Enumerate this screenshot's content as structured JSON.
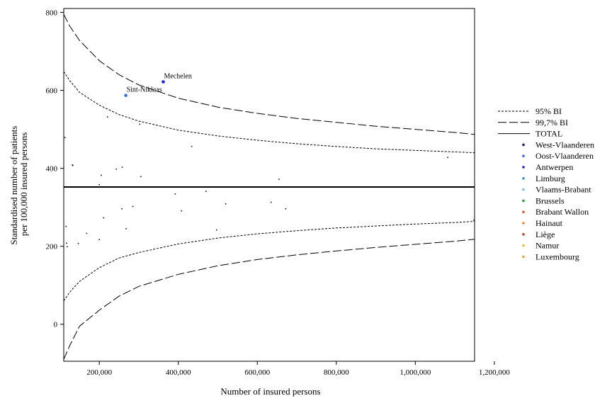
{
  "chart_data": {
    "type": "scatter",
    "xlabel": "Number of insured persons",
    "ylabel": [
      "Standardised number of patients",
      "per 100,000 insured persons"
    ],
    "xlim": [
      110000,
      1150000
    ],
    "ylim": [
      -95,
      810
    ],
    "x_ticks": [
      200000,
      400000,
      600000,
      800000,
      1000000,
      1200000
    ],
    "x_tick_labels": [
      "200,000",
      "400,000",
      "600,000",
      "800,000",
      "1,000,000",
      "1,200,000"
    ],
    "y_ticks": [
      0,
      200,
      400,
      600,
      800
    ],
    "y_tick_labels": [
      "0",
      "200",
      "400",
      "600",
      "800"
    ],
    "total": 352,
    "legend_placement": "right",
    "legend": [
      {
        "label": "95% BI",
        "kind": "line",
        "style": "dotted"
      },
      {
        "label": "99,7% BI",
        "kind": "line",
        "style": "dashed"
      },
      {
        "label": "TOTAL",
        "kind": "line",
        "style": "solid"
      },
      {
        "label": "West-Vlaanderen",
        "kind": "marker",
        "color": "#1a1a80"
      },
      {
        "label": "Oost-Vlaanderen",
        "kind": "marker",
        "color": "#3c6fd8"
      },
      {
        "label": "Antwerpen",
        "kind": "marker",
        "color": "#1f1fd6"
      },
      {
        "label": "Limburg",
        "kind": "marker",
        "color": "#2f8fe0"
      },
      {
        "label": "Vlaams-Brabant",
        "kind": "marker",
        "color": "#7cc0ee"
      },
      {
        "label": "Brussels",
        "kind": "marker",
        "color": "#2ca02c"
      },
      {
        "label": "Brabant Wallon",
        "kind": "marker",
        "color": "#d9622b"
      },
      {
        "label": "Hainaut",
        "kind": "marker",
        "color": "#f08a2c"
      },
      {
        "label": "Liège",
        "kind": "marker",
        "color": "#b5472a"
      },
      {
        "label": "Namur",
        "kind": "marker",
        "color": "#f2c230"
      },
      {
        "label": "Luxembourg",
        "kind": "marker",
        "color": "#f0a030"
      }
    ],
    "bands": [
      {
        "label": "99,7% BI",
        "style": "dashed",
        "upper": [
          [
            110000,
            795
          ],
          [
            125000,
            765
          ],
          [
            150000,
            728
          ],
          [
            200000,
            676
          ],
          [
            250000,
            640
          ],
          [
            300000,
            614
          ],
          [
            400000,
            580
          ],
          [
            500000,
            557
          ],
          [
            600000,
            541
          ],
          [
            700000,
            528
          ],
          [
            800000,
            518
          ],
          [
            900000,
            508
          ],
          [
            1000000,
            500
          ],
          [
            1100000,
            492
          ],
          [
            1150000,
            487
          ]
        ],
        "lower": [
          [
            110000,
            -90
          ],
          [
            125000,
            -55
          ],
          [
            150000,
            -5
          ],
          [
            200000,
            36
          ],
          [
            250000,
            72
          ],
          [
            300000,
            97
          ],
          [
            400000,
            128
          ],
          [
            500000,
            150
          ],
          [
            600000,
            166
          ],
          [
            700000,
            178
          ],
          [
            800000,
            188
          ],
          [
            900000,
            197
          ],
          [
            1000000,
            205
          ],
          [
            1100000,
            213
          ],
          [
            1150000,
            218
          ]
        ]
      },
      {
        "label": "95% BI",
        "style": "dotted",
        "upper": [
          [
            110000,
            648
          ],
          [
            125000,
            625
          ],
          [
            150000,
            595
          ],
          [
            200000,
            562
          ],
          [
            250000,
            538
          ],
          [
            300000,
            521
          ],
          [
            400000,
            498
          ],
          [
            500000,
            483
          ],
          [
            600000,
            472
          ],
          [
            700000,
            463
          ],
          [
            800000,
            456
          ],
          [
            900000,
            450
          ],
          [
            1000000,
            446
          ],
          [
            1100000,
            442
          ],
          [
            1150000,
            440
          ]
        ],
        "lower": [
          [
            110000,
            60
          ],
          [
            125000,
            82
          ],
          [
            150000,
            110
          ],
          [
            200000,
            145
          ],
          [
            250000,
            170
          ],
          [
            300000,
            184
          ],
          [
            400000,
            206
          ],
          [
            500000,
            221
          ],
          [
            600000,
            232
          ],
          [
            700000,
            240
          ],
          [
            800000,
            247
          ],
          [
            900000,
            252
          ],
          [
            1000000,
            257
          ],
          [
            1100000,
            261
          ],
          [
            1150000,
            264
          ]
        ]
      }
    ],
    "points": [
      {
        "x": 362000,
        "y": 622,
        "region": "Antwerpen",
        "label": "Mechelen"
      },
      {
        "x": 267000,
        "y": 587,
        "region": "Oost-Vlaanderen",
        "label": "Sint-Niklaas"
      },
      {
        "x": 113000,
        "y": 479,
        "region": "West-Vlaanderen"
      },
      {
        "x": 221000,
        "y": 532,
        "region": "Brussels"
      },
      {
        "x": 302000,
        "y": 513,
        "region": "Limburg"
      },
      {
        "x": 132000,
        "y": 409,
        "region": "Hainaut"
      },
      {
        "x": 133000,
        "y": 407,
        "region": "Liège"
      },
      {
        "x": 205000,
        "y": 382,
        "region": "Namur"
      },
      {
        "x": 243000,
        "y": 398,
        "region": "Vlaams-Brabant"
      },
      {
        "x": 258000,
        "y": 403,
        "region": "Brabant Wallon"
      },
      {
        "x": 200000,
        "y": 358,
        "region": "Luxembourg"
      },
      {
        "x": 305000,
        "y": 379,
        "region": "Hainaut"
      },
      {
        "x": 434000,
        "y": 456,
        "region": "Liège"
      },
      {
        "x": 655000,
        "y": 372,
        "region": "Antwerpen"
      },
      {
        "x": 1082000,
        "y": 428,
        "region": "Oost-Vlaanderen"
      },
      {
        "x": 392000,
        "y": 334,
        "region": "Brussels"
      },
      {
        "x": 470000,
        "y": 341,
        "region": "Limburg"
      },
      {
        "x": 408000,
        "y": 291,
        "region": "Namur"
      },
      {
        "x": 520000,
        "y": 309,
        "region": "West-Vlaanderen"
      },
      {
        "x": 635000,
        "y": 313,
        "region": "Vlaams-Brabant"
      },
      {
        "x": 672000,
        "y": 296,
        "region": "Hainaut"
      },
      {
        "x": 285000,
        "y": 302,
        "region": "Luxembourg"
      },
      {
        "x": 257000,
        "y": 296,
        "region": "Brabant Wallon"
      },
      {
        "x": 211000,
        "y": 273,
        "region": "Liège"
      },
      {
        "x": 116000,
        "y": 251,
        "region": "Hainaut"
      },
      {
        "x": 268000,
        "y": 245,
        "region": "Namur"
      },
      {
        "x": 497000,
        "y": 242,
        "region": "Liège"
      },
      {
        "x": 168000,
        "y": 233,
        "region": "Brussels"
      },
      {
        "x": 200000,
        "y": 217,
        "region": "Hainaut"
      },
      {
        "x": 117000,
        "y": 208,
        "region": "Luxembourg"
      },
      {
        "x": 119000,
        "y": 199,
        "region": "Namur"
      },
      {
        "x": 147000,
        "y": 207,
        "region": "Liège"
      },
      {
        "x": 1148000,
        "y": 267,
        "region": "Antwerpen"
      }
    ]
  }
}
